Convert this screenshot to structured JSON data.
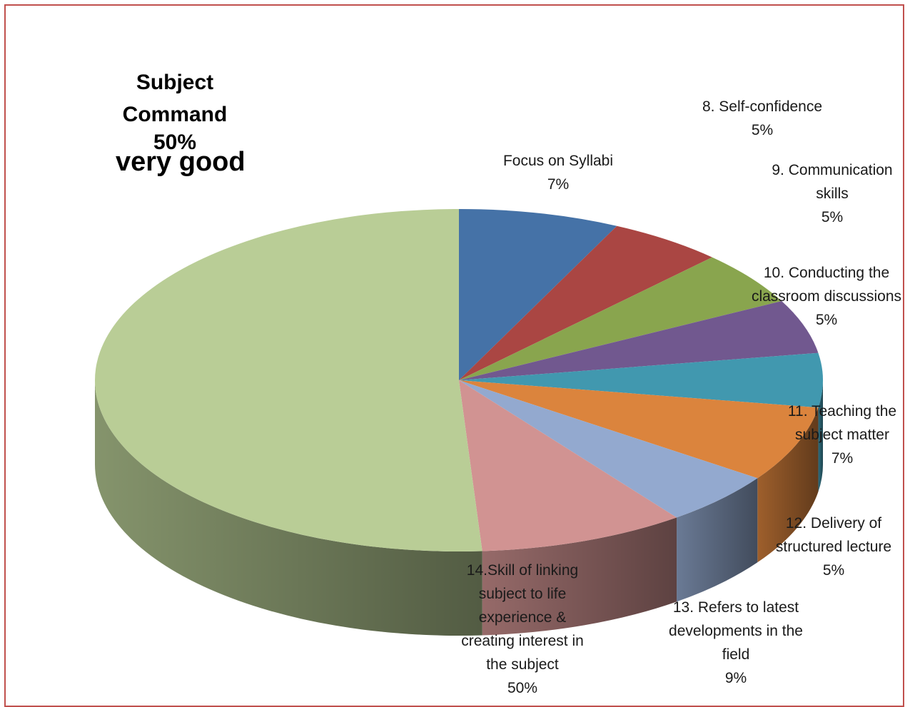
{
  "chart_data": {
    "type": "pie",
    "style": "3d",
    "slices": [
      {
        "label": "Focus on Syllabi",
        "value": 7,
        "pct_text": "7%",
        "color": "#4572a7"
      },
      {
        "label": "8. Self-confidence",
        "value": 5,
        "pct_text": "5%",
        "color": "#aa4643"
      },
      {
        "label": "9. Communication skills",
        "value": 5,
        "pct_text": "5%",
        "color": "#89a54e"
      },
      {
        "label": "10. Conducting the classroom discussions",
        "value": 5,
        "pct_text": "5%",
        "color": "#71588f"
      },
      {
        "label": "",
        "value": 5,
        "pct_text": "",
        "color": "#4198af"
      },
      {
        "label": "11. Teaching the subject matter",
        "value": 7,
        "pct_text": "7%",
        "color": "#db843d"
      },
      {
        "label": "12. Delivery of structured lecture",
        "value": 5,
        "pct_text": "5%",
        "color": "#93a9cf"
      },
      {
        "label": "13. Refers to latest developments in the field",
        "value": 9,
        "pct_text": "9%",
        "color": "#d19392"
      },
      {
        "label": "14.Skill of linking subject to life experience & creating interest in the subject",
        "value": 50,
        "pct_text": "50%",
        "color": "#b9cd96"
      }
    ],
    "subject_label": {
      "lines": [
        "Subject",
        "Command",
        "50%"
      ]
    },
    "annotation": "very good"
  },
  "labels": {
    "focus": [
      "Focus on Syllabi"
    ],
    "self_conf": [
      "8. Self-confidence"
    ],
    "comm": [
      "9. Communication",
      "skills"
    ],
    "conduct": [
      "10. Conducting the",
      "classroom discussions"
    ],
    "teaching": [
      "11. Teaching the",
      "subject matter"
    ],
    "delivery": [
      "12. Delivery of",
      "structured lecture"
    ],
    "refers": [
      "13. Refers to latest",
      "developments in the",
      "field"
    ],
    "skill": [
      "14.Skill of linking",
      "subject to life",
      "experience &",
      "creating interest in",
      "the subject"
    ]
  },
  "pcts": {
    "focus": "7%",
    "self_conf": "5%",
    "comm": "5%",
    "conduct": "5%",
    "teaching": "7%",
    "delivery": "5%",
    "refers": "9%",
    "skill": "50%"
  }
}
